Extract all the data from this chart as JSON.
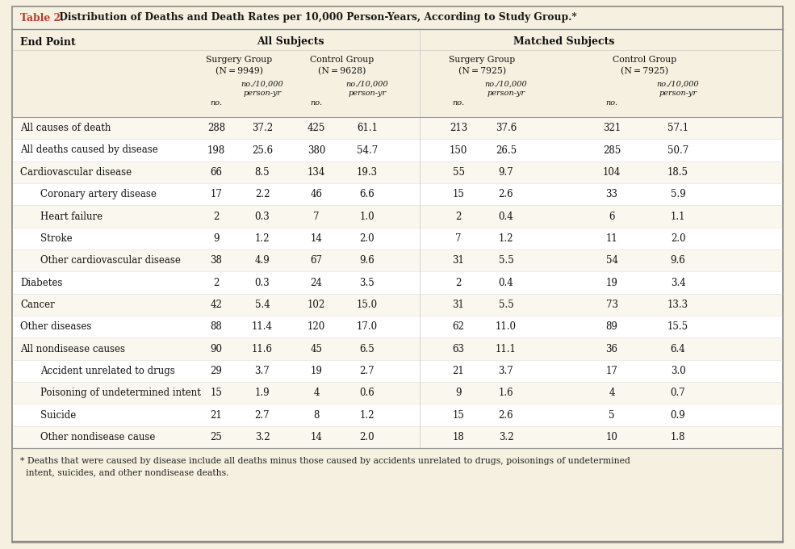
{
  "title_prefix": "Table 2.",
  "title_text": " Distribution of Deaths and Death Rates per 10,000 Person-Years, According to Study Group.*",
  "title_prefix_color": "#c0392b",
  "title_text_color": "#1a1a1a",
  "bg_color": "#f5f0df",
  "table_bg": "#faf7ee",
  "shaded_color": "#faf7ee",
  "white_color": "#ffffff",
  "border_color": "#999999",
  "footnote_line1": "* Deaths that were caused by disease include all deaths minus those caused by accidents unrelated to drugs, poisonings of undetermined",
  "footnote_line2": "  intent, suicides, and other nondisease deaths.",
  "rows": [
    {
      "label": "All causes of death",
      "indent": false,
      "sg_all_no": "288",
      "sg_all_py": "37.2",
      "cg_all_no": "425",
      "cg_all_py": "61.1",
      "sg_m_no": "213",
      "sg_m_py": "37.6",
      "cg_m_no": "321",
      "cg_m_py": "57.1",
      "shaded": true
    },
    {
      "label": "All deaths caused by disease",
      "indent": false,
      "sg_all_no": "198",
      "sg_all_py": "25.6",
      "cg_all_no": "380",
      "cg_all_py": "54.7",
      "sg_m_no": "150",
      "sg_m_py": "26.5",
      "cg_m_no": "285",
      "cg_m_py": "50.7",
      "shaded": false
    },
    {
      "label": "Cardiovascular disease",
      "indent": false,
      "sg_all_no": "66",
      "sg_all_py": "8.5",
      "cg_all_no": "134",
      "cg_all_py": "19.3",
      "sg_m_no": "55",
      "sg_m_py": "9.7",
      "cg_m_no": "104",
      "cg_m_py": "18.5",
      "shaded": true
    },
    {
      "label": "Coronary artery disease",
      "indent": true,
      "sg_all_no": "17",
      "sg_all_py": "2.2",
      "cg_all_no": "46",
      "cg_all_py": "6.6",
      "sg_m_no": "15",
      "sg_m_py": "2.6",
      "cg_m_no": "33",
      "cg_m_py": "5.9",
      "shaded": false
    },
    {
      "label": "Heart failure",
      "indent": true,
      "sg_all_no": "2",
      "sg_all_py": "0.3",
      "cg_all_no": "7",
      "cg_all_py": "1.0",
      "sg_m_no": "2",
      "sg_m_py": "0.4",
      "cg_m_no": "6",
      "cg_m_py": "1.1",
      "shaded": true
    },
    {
      "label": "Stroke",
      "indent": true,
      "sg_all_no": "9",
      "sg_all_py": "1.2",
      "cg_all_no": "14",
      "cg_all_py": "2.0",
      "sg_m_no": "7",
      "sg_m_py": "1.2",
      "cg_m_no": "11",
      "cg_m_py": "2.0",
      "shaded": false
    },
    {
      "label": "Other cardiovascular disease",
      "indent": true,
      "sg_all_no": "38",
      "sg_all_py": "4.9",
      "cg_all_no": "67",
      "cg_all_py": "9.6",
      "sg_m_no": "31",
      "sg_m_py": "5.5",
      "cg_m_no": "54",
      "cg_m_py": "9.6",
      "shaded": true
    },
    {
      "label": "Diabetes",
      "indent": false,
      "sg_all_no": "2",
      "sg_all_py": "0.3",
      "cg_all_no": "24",
      "cg_all_py": "3.5",
      "sg_m_no": "2",
      "sg_m_py": "0.4",
      "cg_m_no": "19",
      "cg_m_py": "3.4",
      "shaded": false
    },
    {
      "label": "Cancer",
      "indent": false,
      "sg_all_no": "42",
      "sg_all_py": "5.4",
      "cg_all_no": "102",
      "cg_all_py": "15.0",
      "sg_m_no": "31",
      "sg_m_py": "5.5",
      "cg_m_no": "73",
      "cg_m_py": "13.3",
      "shaded": true
    },
    {
      "label": "Other diseases",
      "indent": false,
      "sg_all_no": "88",
      "sg_all_py": "11.4",
      "cg_all_no": "120",
      "cg_all_py": "17.0",
      "sg_m_no": "62",
      "sg_m_py": "11.0",
      "cg_m_no": "89",
      "cg_m_py": "15.5",
      "shaded": false
    },
    {
      "label": "All nondisease causes",
      "indent": false,
      "sg_all_no": "90",
      "sg_all_py": "11.6",
      "cg_all_no": "45",
      "cg_all_py": "6.5",
      "sg_m_no": "63",
      "sg_m_py": "11.1",
      "cg_m_no": "36",
      "cg_m_py": "6.4",
      "shaded": true
    },
    {
      "label": "Accident unrelated to drugs",
      "indent": true,
      "sg_all_no": "29",
      "sg_all_py": "3.7",
      "cg_all_no": "19",
      "cg_all_py": "2.7",
      "sg_m_no": "21",
      "sg_m_py": "3.7",
      "cg_m_no": "17",
      "cg_m_py": "3.0",
      "shaded": false
    },
    {
      "label": "Poisoning of undetermined intent",
      "indent": true,
      "sg_all_no": "15",
      "sg_all_py": "1.9",
      "cg_all_no": "4",
      "cg_all_py": "0.6",
      "sg_m_no": "9",
      "sg_m_py": "1.6",
      "cg_m_no": "4",
      "cg_m_py": "0.7",
      "shaded": true
    },
    {
      "label": "Suicide",
      "indent": true,
      "sg_all_no": "21",
      "sg_all_py": "2.7",
      "cg_all_no": "8",
      "cg_all_py": "1.2",
      "sg_m_no": "15",
      "sg_m_py": "2.6",
      "cg_m_no": "5",
      "cg_m_py": "0.9",
      "shaded": false
    },
    {
      "label": "Other nondisease cause",
      "indent": true,
      "sg_all_no": "25",
      "sg_all_py": "3.2",
      "cg_all_no": "14",
      "cg_all_py": "2.0",
      "sg_m_no": "18",
      "sg_m_py": "3.2",
      "cg_m_no": "10",
      "cg_m_py": "1.8",
      "shaded": true
    }
  ]
}
